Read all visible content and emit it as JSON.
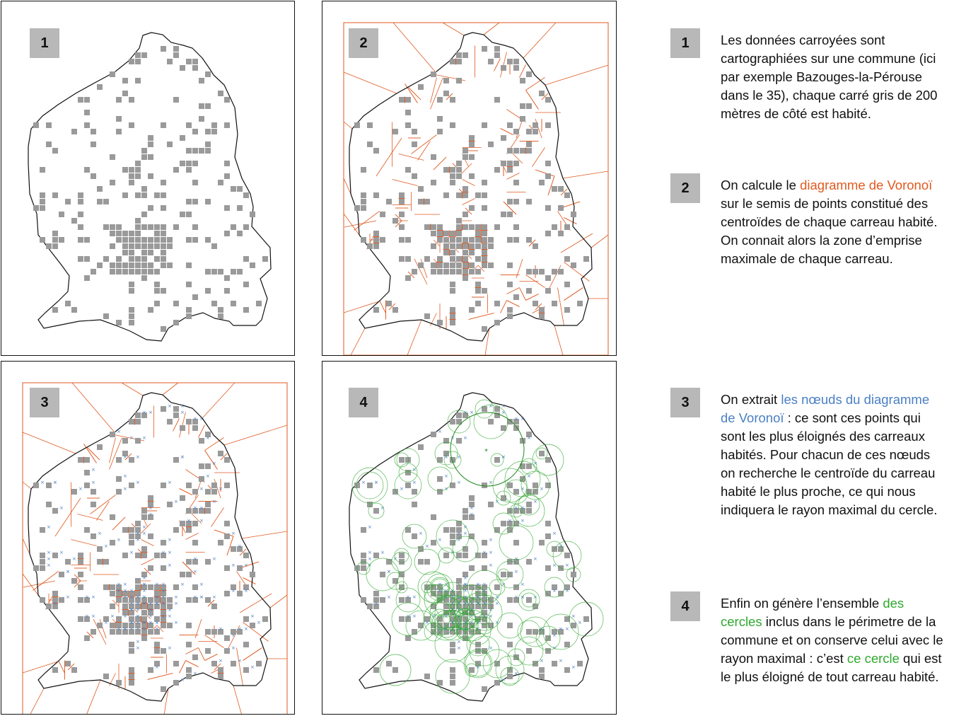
{
  "panels": [
    {
      "number": "1"
    },
    {
      "number": "2"
    },
    {
      "number": "3"
    },
    {
      "number": "4"
    }
  ],
  "steps": [
    {
      "number": "1",
      "text": "Les données carroyées sont cartographiées sur une commune (ici par exemple Bazouges-la-Pérouse dans le 35), chaque carré gris de 200 mètres de côté est habité."
    },
    {
      "number": "2",
      "before": "On calcule le ",
      "highlight": "diagramme de Voronoï",
      "after": " sur le semis de points constitué des centroïdes de chaque carreau habité. On connait alors la zone d’emprise maximale de chaque carreau."
    },
    {
      "number": "3",
      "before": "On extrait ",
      "highlight": "les nœuds du diagramme de Voronoï",
      "after": " :  ce sont ces points qui sont les plus éloignés des carreaux habités. Pour chacun de ces nœuds on recherche le centroïde du carreau habité le plus proche, ce qui nous indiquera le rayon maximal du cercle."
    },
    {
      "number": "4",
      "before": "Enfin on génère l’ensemble ",
      "highlight": "des cercles",
      "middle": " inclus dans le périmetre de la commune et on conserve celui avec le rayon maximal : c’est ",
      "highlight2": "ce cercle",
      "after": " qui est le plus éloigné de tout carreau habité."
    }
  ],
  "colors": {
    "squares": "#9a9a9a",
    "voronoi": "#e05a20",
    "nodes": "#4a7fc4",
    "circles": "#2fa82f",
    "maxcircle": "#1f8a1f",
    "boundary": "#111111"
  }
}
